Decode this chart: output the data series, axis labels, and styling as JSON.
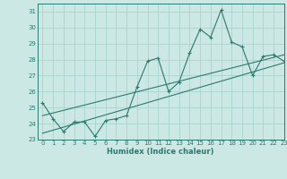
{
  "xlabel": "Humidex (Indice chaleur)",
  "xlim": [
    -0.5,
    23
  ],
  "ylim": [
    23,
    31.5
  ],
  "yticks": [
    23,
    24,
    25,
    26,
    27,
    28,
    29,
    30,
    31
  ],
  "xticks": [
    0,
    1,
    2,
    3,
    4,
    5,
    6,
    7,
    8,
    9,
    10,
    11,
    12,
    13,
    14,
    15,
    16,
    17,
    18,
    19,
    20,
    21,
    22,
    23
  ],
  "bg_color": "#cce8e4",
  "grid_color": "#aad4cf",
  "line_color": "#2a7a70",
  "series1_x": [
    0,
    1,
    2,
    3,
    4,
    5,
    6,
    7,
    8,
    9,
    10,
    11,
    12,
    13,
    14,
    15,
    16,
    17,
    18,
    19,
    20,
    21,
    22,
    23
  ],
  "series1_y": [
    25.3,
    24.3,
    23.5,
    24.1,
    24.1,
    23.2,
    24.2,
    24.3,
    24.5,
    26.3,
    27.9,
    28.1,
    26.0,
    26.6,
    28.4,
    29.9,
    29.4,
    31.1,
    29.1,
    28.8,
    27.0,
    28.2,
    28.3,
    27.9
  ],
  "series2_x": [
    0,
    23
  ],
  "series2_y": [
    23.4,
    27.8
  ],
  "series3_x": [
    0,
    23
  ],
  "series3_y": [
    24.5,
    28.3
  ]
}
